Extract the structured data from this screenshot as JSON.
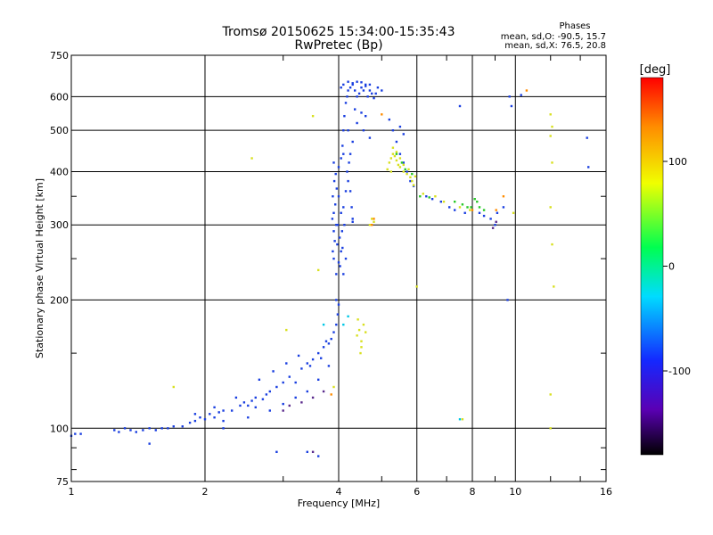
{
  "chart_data": {
    "type": "scatter",
    "title": "Tromsø 20150625 15:34:00-15:35:43",
    "subtitle": "RwPretec (Bp)",
    "xlabel": "Frequency [MHz]",
    "ylabel": "Stationary phase Virtual Height [km]",
    "x_scale": "log",
    "y_scale": "log",
    "xlim": [
      1,
      16
    ],
    "ylim": [
      75,
      750
    ],
    "x_ticks": [
      1,
      2,
      4,
      6,
      8,
      10,
      16
    ],
    "x_minor_ticks": [
      3,
      5,
      7,
      9,
      12,
      14
    ],
    "y_ticks": [
      75,
      100,
      200,
      300,
      400,
      500,
      600,
      750
    ],
    "y_minor_ticks": [
      80,
      90,
      150,
      250,
      350
    ],
    "grid": true,
    "stats": {
      "title": "Phases",
      "line_o": "mean, sd,O: -90.5, 15.7",
      "line_x": "mean, sd,X:  76.5, 20.8"
    },
    "colorbar": {
      "label": "[deg]",
      "range": [
        -180,
        180
      ],
      "ticks": [
        100,
        0,
        -100
      ]
    },
    "series": [
      {
        "mode": "O",
        "color": "#1a3fe0",
        "points": [
          [
            1.0,
            96
          ],
          [
            1.02,
            97
          ],
          [
            1.05,
            97
          ],
          [
            1.25,
            99
          ],
          [
            1.28,
            98
          ],
          [
            1.32,
            100
          ],
          [
            1.36,
            99
          ],
          [
            1.4,
            98
          ],
          [
            1.45,
            99
          ],
          [
            1.5,
            100
          ],
          [
            1.55,
            99
          ],
          [
            1.6,
            100
          ],
          [
            1.65,
            100
          ],
          [
            1.7,
            101
          ],
          [
            1.78,
            101
          ],
          [
            1.85,
            103
          ],
          [
            1.9,
            104
          ],
          [
            1.95,
            106
          ],
          [
            2.0,
            105
          ],
          [
            2.05,
            108
          ],
          [
            2.1,
            106
          ],
          [
            2.15,
            109
          ],
          [
            2.2,
            110
          ],
          [
            2.3,
            110
          ],
          [
            2.4,
            113
          ],
          [
            2.45,
            115
          ],
          [
            2.5,
            113
          ],
          [
            2.55,
            116
          ],
          [
            2.6,
            118
          ],
          [
            2.7,
            117
          ],
          [
            2.75,
            120
          ],
          [
            2.8,
            122
          ],
          [
            2.9,
            125
          ],
          [
            3.0,
            128
          ],
          [
            3.1,
            132
          ],
          [
            3.2,
            128
          ],
          [
            3.3,
            138
          ],
          [
            3.4,
            142
          ],
          [
            3.5,
            145
          ],
          [
            3.6,
            150
          ],
          [
            3.7,
            155
          ],
          [
            3.8,
            158
          ],
          [
            3.85,
            162
          ],
          [
            3.9,
            168
          ],
          [
            3.95,
            175
          ],
          [
            3.98,
            185
          ],
          [
            4.0,
            195
          ],
          [
            3.95,
            200
          ],
          [
            1.9,
            108
          ],
          [
            2.1,
            112
          ],
          [
            2.35,
            118
          ],
          [
            2.65,
            130
          ],
          [
            2.85,
            136
          ],
          [
            3.05,
            142
          ],
          [
            3.25,
            148
          ],
          [
            3.45,
            140
          ],
          [
            3.65,
            146
          ],
          [
            3.75,
            160
          ],
          [
            2.2,
            104
          ],
          [
            2.5,
            106
          ],
          [
            2.8,
            110
          ],
          [
            3.0,
            114
          ],
          [
            3.2,
            118
          ],
          [
            3.4,
            122
          ],
          [
            3.6,
            130
          ],
          [
            3.8,
            140
          ],
          [
            2.9,
            88
          ],
          [
            3.4,
            88
          ],
          [
            3.6,
            86
          ],
          [
            1.5,
            92
          ],
          [
            2.2,
            100
          ],
          [
            2.6,
            112
          ],
          [
            3.9,
            250
          ],
          [
            3.88,
            260
          ],
          [
            3.92,
            275
          ],
          [
            3.9,
            290
          ],
          [
            3.95,
            300
          ],
          [
            3.87,
            310
          ],
          [
            3.9,
            320
          ],
          [
            3.93,
            335
          ],
          [
            3.88,
            350
          ],
          [
            3.96,
            365
          ],
          [
            3.91,
            380
          ],
          [
            3.94,
            395
          ],
          [
            4.0,
            410
          ],
          [
            3.9,
            420
          ],
          [
            3.98,
            300
          ],
          [
            4.02,
            280
          ],
          [
            4.05,
            260
          ],
          [
            4.0,
            245
          ],
          [
            4.03,
            240
          ],
          [
            3.95,
            230
          ],
          [
            4.08,
            265
          ],
          [
            4.12,
            300
          ],
          [
            4.1,
            330
          ],
          [
            4.15,
            360
          ],
          [
            4.2,
            380
          ],
          [
            4.18,
            400
          ],
          [
            4.22,
            420
          ],
          [
            4.25,
            360
          ],
          [
            4.28,
            330
          ],
          [
            4.3,
            310
          ],
          [
            4.1,
            230
          ],
          [
            4.15,
            250
          ],
          [
            4.05,
            320
          ],
          [
            4.0,
            350
          ],
          [
            3.97,
            270
          ],
          [
            4.07,
            290
          ],
          [
            4.05,
            430
          ],
          [
            4.08,
            460
          ],
          [
            4.1,
            500
          ],
          [
            4.12,
            540
          ],
          [
            4.15,
            580
          ],
          [
            4.18,
            600
          ],
          [
            4.2,
            620
          ],
          [
            4.25,
            630
          ],
          [
            4.3,
            640
          ],
          [
            4.35,
            620
          ],
          [
            4.4,
            600
          ],
          [
            4.45,
            610
          ],
          [
            4.5,
            630
          ],
          [
            4.55,
            620
          ],
          [
            4.6,
            640
          ],
          [
            4.65,
            600
          ],
          [
            4.7,
            620
          ],
          [
            4.75,
            610
          ],
          [
            4.8,
            595
          ],
          [
            4.85,
            610
          ],
          [
            4.9,
            630
          ],
          [
            5.0,
            620
          ],
          [
            4.05,
            630
          ],
          [
            4.1,
            640
          ],
          [
            4.2,
            650
          ],
          [
            4.3,
            645
          ],
          [
            4.4,
            650
          ],
          [
            4.5,
            648
          ],
          [
            4.6,
            635
          ],
          [
            4.7,
            640
          ],
          [
            4.35,
            560
          ],
          [
            4.5,
            550
          ],
          [
            4.6,
            540
          ],
          [
            4.4,
            520
          ],
          [
            4.55,
            500
          ],
          [
            4.7,
            480
          ],
          [
            4.2,
            500
          ],
          [
            4.3,
            470
          ],
          [
            4.25,
            440
          ],
          [
            4.1,
            440
          ],
          [
            5.2,
            530
          ],
          [
            5.3,
            500
          ],
          [
            5.4,
            470
          ],
          [
            5.5,
            440
          ],
          [
            5.6,
            420
          ],
          [
            5.7,
            400
          ],
          [
            5.8,
            380
          ],
          [
            5.9,
            370
          ],
          [
            5.5,
            510
          ],
          [
            5.6,
            490
          ],
          [
            6.3,
            350
          ],
          [
            6.5,
            345
          ],
          [
            6.8,
            340
          ],
          [
            7.1,
            330
          ],
          [
            7.3,
            325
          ],
          [
            7.7,
            320
          ],
          [
            8.3,
            320
          ],
          [
            8.5,
            315
          ],
          [
            8.8,
            310
          ],
          [
            9.0,
            300
          ],
          [
            9.1,
            320
          ],
          [
            9.4,
            330
          ],
          [
            7.5,
            570
          ],
          [
            9.7,
            600
          ],
          [
            9.8,
            570
          ],
          [
            10.3,
            605
          ],
          [
            9.6,
            200
          ],
          [
            14.5,
            480
          ],
          [
            14.6,
            410
          ],
          [
            4.3,
            305
          ]
        ]
      },
      {
        "mode": "X",
        "color": "#d8e020",
        "points": [
          [
            5.2,
            420
          ],
          [
            5.25,
            430
          ],
          [
            5.3,
            440
          ],
          [
            5.35,
            435
          ],
          [
            5.4,
            425
          ],
          [
            5.45,
            415
          ],
          [
            5.5,
            410
          ],
          [
            5.6,
            400
          ],
          [
            5.7,
            395
          ],
          [
            5.8,
            388
          ],
          [
            5.85,
            380
          ],
          [
            5.9,
            372
          ],
          [
            5.3,
            455
          ],
          [
            5.4,
            445
          ],
          [
            5.5,
            430
          ],
          [
            5.6,
            415
          ],
          [
            5.75,
            405
          ],
          [
            5.95,
            390
          ],
          [
            5.15,
            405
          ],
          [
            5.25,
            400
          ],
          [
            4.4,
            165
          ],
          [
            4.45,
            170
          ],
          [
            4.5,
            160
          ],
          [
            4.55,
            175
          ],
          [
            4.5,
            155
          ],
          [
            4.6,
            168
          ],
          [
            4.42,
            180
          ],
          [
            4.48,
            150
          ],
          [
            4.7,
            300
          ],
          [
            4.75,
            310
          ],
          [
            4.8,
            305
          ],
          [
            6.2,
            355
          ],
          [
            6.6,
            350
          ],
          [
            6.9,
            340
          ],
          [
            7.5,
            330
          ],
          [
            7.9,
            325
          ],
          [
            3.05,
            170
          ],
          [
            1.7,
            125
          ],
          [
            2.55,
            430
          ],
          [
            3.5,
            540
          ],
          [
            3.6,
            235
          ],
          [
            3.9,
            125
          ],
          [
            12.0,
            545
          ],
          [
            12.1,
            510
          ],
          [
            12.0,
            485
          ],
          [
            12.1,
            420
          ],
          [
            12.0,
            330
          ],
          [
            12.1,
            270
          ],
          [
            12.2,
            215
          ],
          [
            12.0,
            120
          ],
          [
            12.0,
            100
          ],
          [
            9.9,
            320
          ],
          [
            6.0,
            215
          ],
          [
            7.6,
            105
          ]
        ]
      },
      {
        "mode": "X",
        "color": "#28c828",
        "points": [
          [
            5.4,
            440
          ],
          [
            5.55,
            420
          ],
          [
            5.65,
            405
          ],
          [
            5.85,
            395
          ],
          [
            7.6,
            335
          ],
          [
            7.8,
            330
          ],
          [
            8.1,
            345
          ],
          [
            8.3,
            330
          ],
          [
            8.5,
            325
          ],
          [
            8.2,
            340
          ],
          [
            6.1,
            350
          ],
          [
            6.4,
            348
          ],
          [
            7.3,
            340
          ],
          [
            7.95,
            330
          ]
        ]
      },
      {
        "mode": "X",
        "color": "#ff8c00",
        "points": [
          [
            4.8,
            310
          ],
          [
            4.75,
            300
          ],
          [
            5.0,
            545
          ],
          [
            3.85,
            120
          ],
          [
            9.05,
            325
          ],
          [
            9.4,
            350
          ],
          [
            10.6,
            620
          ],
          [
            8.0,
            325
          ]
        ]
      },
      {
        "mode": "O",
        "color": "#00c8e6",
        "points": [
          [
            4.1,
            175
          ],
          [
            4.2,
            183
          ],
          [
            3.7,
            175
          ],
          [
            7.5,
            105
          ]
        ]
      },
      {
        "mode": "O",
        "color": "#5a2a8c",
        "points": [
          [
            3.1,
            113
          ],
          [
            3.3,
            115
          ],
          [
            3.5,
            118
          ],
          [
            3.7,
            122
          ],
          [
            3.0,
            110
          ],
          [
            8.9,
            295
          ],
          [
            9.05,
            305
          ],
          [
            3.5,
            88
          ]
        ]
      }
    ]
  }
}
